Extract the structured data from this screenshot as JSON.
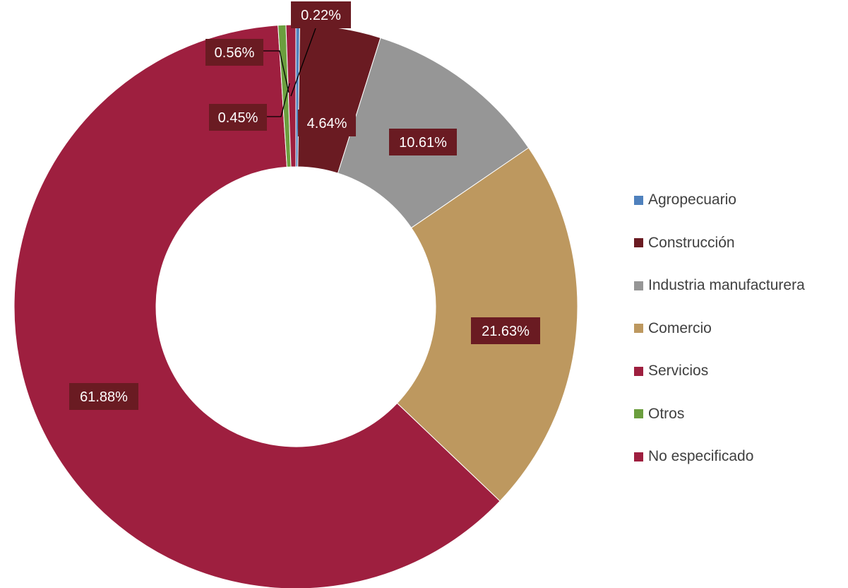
{
  "chart_data": {
    "type": "pie",
    "variant": "donut",
    "title": "",
    "legend_position": "right",
    "slices": [
      {
        "name": "Agropecuario",
        "value": 0.22,
        "label": "0.22%",
        "color": "#4f81bd"
      },
      {
        "name": "Construcción",
        "value": 4.64,
        "label": "4.64%",
        "color": "#6a1b22"
      },
      {
        "name": "Industria manufacturera",
        "value": 10.61,
        "label": "10.61%",
        "color": "#969696"
      },
      {
        "name": "Comercio",
        "value": 21.63,
        "label": "21.63%",
        "color": "#bd985f"
      },
      {
        "name": "Servicios",
        "value": 61.88,
        "label": "61.88%",
        "color": "#9e1f3f"
      },
      {
        "name": "Otros",
        "value": 0.45,
        "label": "0.45%",
        "color": "#6b9e3e"
      },
      {
        "name": "No especificado",
        "value": 0.56,
        "label": "0.56%",
        "color": "#9e1f3f"
      }
    ],
    "label_box_color": "#6a1b22",
    "label_text_color": "#ffffff"
  }
}
